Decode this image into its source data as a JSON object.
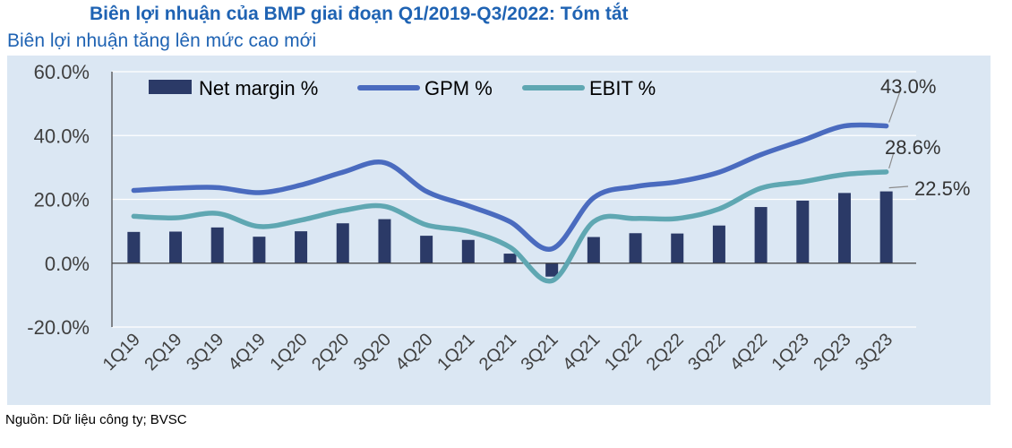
{
  "header": {
    "title": "Biên lợi nhuận của BMP giai đoạn Q1/2019-Q3/2022: Tóm tắt",
    "subtitle": "Biên lợi nhuận tăng lên mức cao mới"
  },
  "footer": {
    "source": "Nguồn: Dữ liệu công ty; BVSC"
  },
  "colors": {
    "bar": "#2b3a67",
    "gpm": "#4a6bbf",
    "ebit": "#5fa7b2",
    "panel": "#dbe7f3",
    "grid": "#ffffff"
  },
  "chart_data": {
    "type": "bar",
    "categories": [
      "1Q19",
      "2Q19",
      "3Q19",
      "4Q19",
      "1Q20",
      "2Q20",
      "3Q20",
      "4Q20",
      "1Q21",
      "2Q21",
      "3Q21",
      "4Q21",
      "1Q22",
      "2Q22",
      "3Q22",
      "4Q22",
      "1Q23",
      "2Q23",
      "3Q23"
    ],
    "series": [
      {
        "name": "Net margin %",
        "kind": "bar",
        "values": [
          9.8,
          9.9,
          11.2,
          8.3,
          10.0,
          12.5,
          13.8,
          8.6,
          7.3,
          3.0,
          -4.2,
          8.2,
          9.4,
          9.3,
          11.8,
          17.6,
          19.6,
          22.0,
          22.5
        ]
      },
      {
        "name": "GPM %",
        "kind": "line",
        "values": [
          22.8,
          23.5,
          23.7,
          22.1,
          24.5,
          28.5,
          31.5,
          22.5,
          18.0,
          13.0,
          4.5,
          20.5,
          24.0,
          25.5,
          28.5,
          34.0,
          38.5,
          43.0,
          43.0
        ]
      },
      {
        "name": "EBIT %",
        "kind": "line",
        "values": [
          14.7,
          14.2,
          15.6,
          11.5,
          13.5,
          16.5,
          17.8,
          12.0,
          10.0,
          5.0,
          -5.5,
          13.0,
          14.0,
          14.0,
          17.0,
          23.5,
          25.5,
          27.8,
          28.6
        ]
      }
    ],
    "annotations": [
      "43.0%",
      "28.6%",
      "22.5%"
    ],
    "ylim": [
      -20,
      60
    ],
    "yticks": [
      "60.0%",
      "40.0%",
      "20.0%",
      "0.0%",
      "-20.0%"
    ],
    "ytick_values": [
      60,
      40,
      20,
      0,
      -20
    ],
    "xlabel": "",
    "ylabel": "",
    "grid": true,
    "legend_position": "top-left"
  }
}
